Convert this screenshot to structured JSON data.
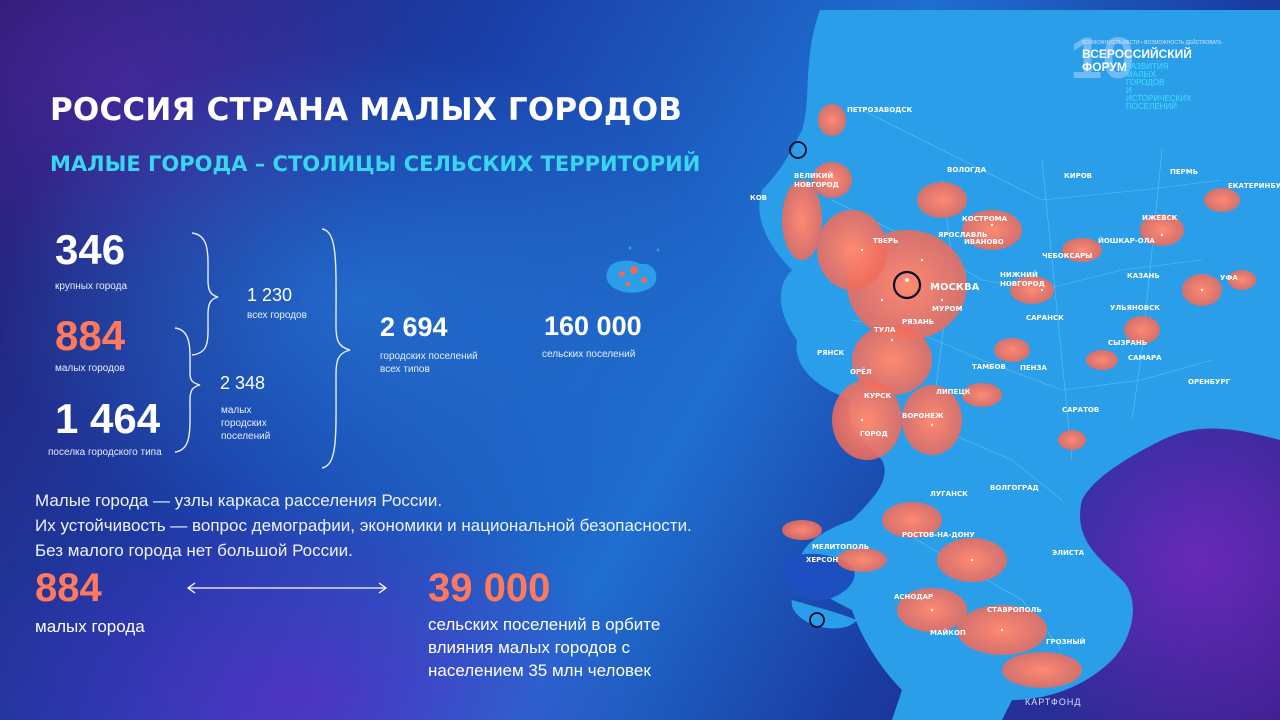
{
  "slide": {
    "title": "РОССИЯ СТРАНА МАЛЫХ ГОРОДОВ",
    "subtitle": "МАЛЫЕ ГОРОДА – СТОЛИЦЫ СЕЛЬСКИХ ТЕРРИТОРИЙ"
  },
  "stats": {
    "large_cities": {
      "value": "346",
      "label": "крупных города"
    },
    "small_cities": {
      "value": "884",
      "label": "малых городов"
    },
    "urban_type_settlements": {
      "value": "1 464",
      "label": "поселка городского типа"
    },
    "all_cities": {
      "value": "1 230",
      "label": "всех городов"
    },
    "small_urban_settlements": {
      "value": "2 348",
      "label_lines": [
        "малых",
        "городских",
        "поселений"
      ]
    },
    "urban_settlements_all": {
      "value": "2 694",
      "label_lines": [
        "городских поселений",
        "всех типов"
      ]
    },
    "rural_settlements": {
      "value": "160 000",
      "label": "сельских поселений"
    }
  },
  "body_text": [
    "Малые города — узлы каркаса расселения России.",
    "Их устойчивость — вопрос демографии, экономики и национальной безопасности.",
    "Без малого города нет большой России."
  ],
  "bottom": {
    "left": {
      "value": "884",
      "label": "малых города"
    },
    "right": {
      "value": "39 000",
      "label_lines": [
        "сельских поселений в орбите",
        "влияния малых городов с",
        "населением 35 млн человек"
      ]
    }
  },
  "forum": {
    "number": "10",
    "tagline": "ВОЗМОЖНОСТЬ РАСТИ • ВОЗМОЖНОСТЬ ДЕЙСТВОВАТЬ",
    "title_lines": [
      "ВСЕРОССИЙСКИЙ",
      "ФОРУМ"
    ],
    "desc_lines": [
      "РАЗВИТИЯ МАЛЫХ",
      "ГОРОДОВ",
      "И ИСТОРИЧЕСКИХ",
      "ПОСЕЛЕНИЙ"
    ]
  },
  "map": {
    "cities": [
      "ПЕТРОЗАВОДСК",
      "ВОЛОГДА",
      "КИРОВ",
      "ПЕРМЬ",
      "ЕКАТЕРИНБУ",
      "ВЕЛИКИЙ",
      "НОВГОРОД",
      "КОСТРОМА",
      "ЯРОСЛАВЛЬ",
      "ИВАНОВО",
      "ИЖЕВСК",
      "ЙОШКАР-ОЛА",
      "ТВЕРЬ",
      "ЧЕБОКСАРЫ",
      "КАЗАНЬ",
      "УФА",
      "МОСКВА",
      "НИЖНИЙ",
      "НОВГОРОД",
      "МУРОМ",
      "РЯЗАНЬ",
      "ТУЛА",
      "САРАНСК",
      "УЛЬЯНОВСК",
      "СЫЗРАНЬ",
      "САМАРА",
      "РЯНСК",
      "ОРЁЛ",
      "ТАМБОВ",
      "ПЕНЗА",
      "ЛИПЕЦК",
      "КУРСК",
      "ВОРОНЕЖ",
      "САРАТОВ",
      "ОРЕНБУРГ",
      "ГОРОД",
      "ЛУГАНСК",
      "ВОЛГОГРАД",
      "МЕЛИТОПОЛЬ",
      "РОСТОВ-НА-ДОНУ",
      "ХЕРСОН",
      "ЭЛИСТА",
      "АСНОДАР",
      "СТАВРОПОЛЬ",
      "МАЙКОП",
      "ГРОЗНЫЙ",
      "КОВ"
    ],
    "colors": {
      "land": "#2a9ee8",
      "urban": "#f06a5a",
      "network": "#7fd4ff"
    }
  },
  "credit": "КАРТФОНД"
}
